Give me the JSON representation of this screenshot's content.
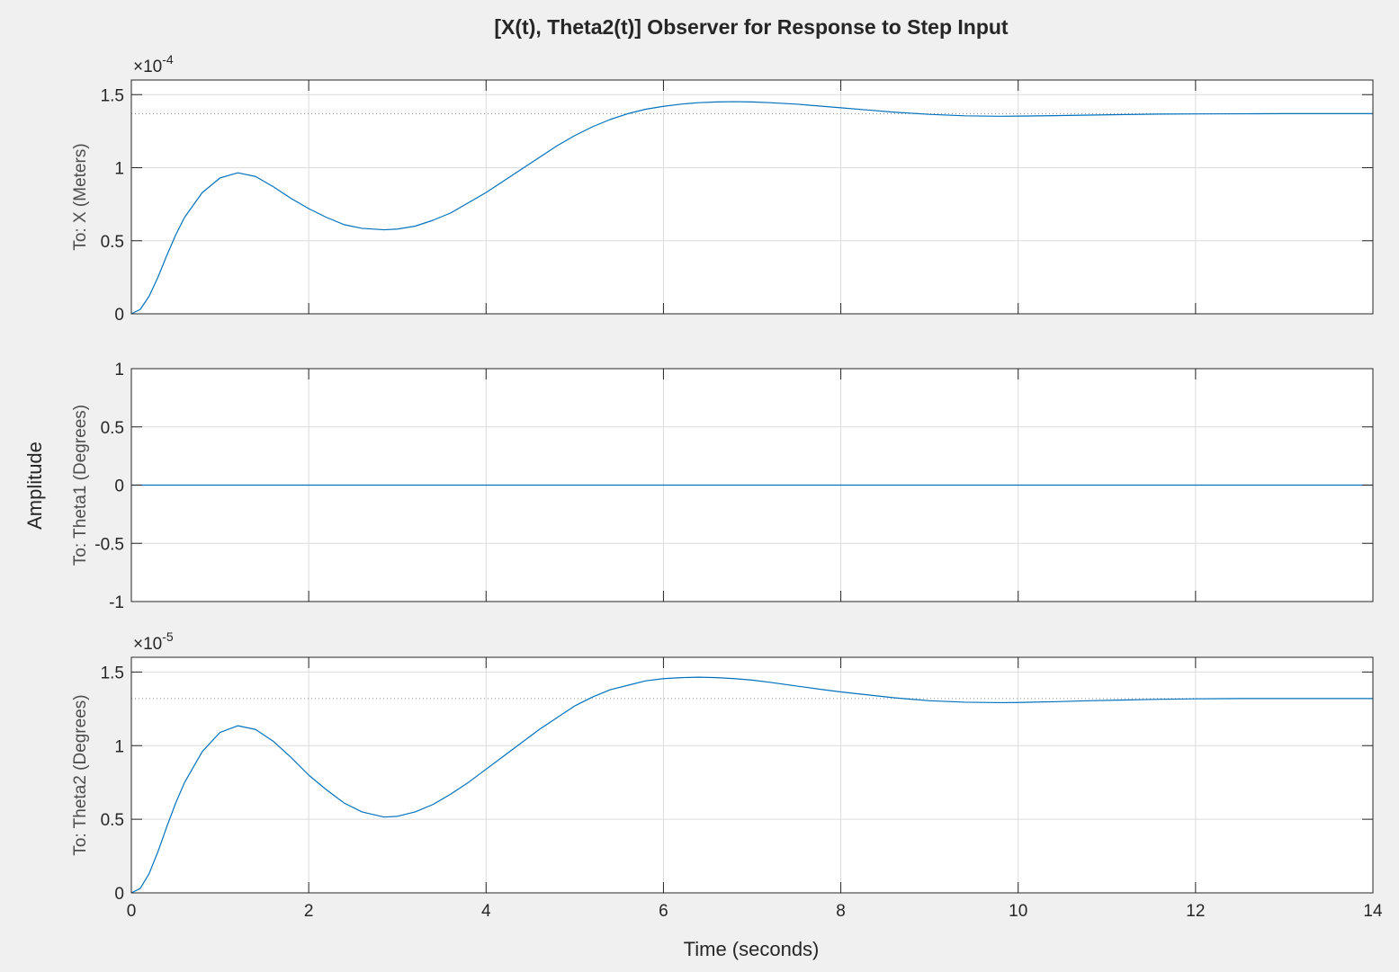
{
  "window": {
    "background": "#f0f0f0",
    "plot_background": "#ffffff",
    "grid_color": "#dcdcdc",
    "line_color": "#0072bd"
  },
  "chart_data": {
    "type": "line",
    "title": "[X(t), Theta2(t)] Observer for Response to Step Input",
    "xlabel": "Time (seconds)",
    "ylabel": "Amplitude",
    "xlim": [
      0,
      14
    ],
    "xticks": [
      0,
      2,
      4,
      6,
      8,
      10,
      12,
      14
    ],
    "grid": true,
    "subplots": [
      {
        "ylabel": "To: X (Meters)",
        "exponent_base": "×10",
        "exponent_power": "-4",
        "ylim": [
          0,
          1.6
        ],
        "yticks": [
          0,
          0.5,
          1,
          1.5
        ],
        "ytick_labels": [
          "0",
          "0.5",
          "1",
          "1.5"
        ],
        "steady_state": 1.37,
        "series": [
          {
            "t": [
              0,
              0.1,
              0.2,
              0.3,
              0.4,
              0.5,
              0.6,
              0.8,
              1.0,
              1.2,
              1.4,
              1.6,
              1.8,
              2.0,
              2.2,
              2.4,
              2.6,
              2.85,
              3.0,
              3.2,
              3.4,
              3.6,
              3.8,
              4.0,
              4.2,
              4.4,
              4.6,
              4.8,
              5.0,
              5.2,
              5.4,
              5.6,
              5.8,
              6.0,
              6.2,
              6.4,
              6.6,
              6.8,
              7.0,
              7.2,
              7.5,
              7.8,
              8.0,
              8.3,
              8.6,
              9.0,
              9.4,
              9.8,
              10.0,
              10.4,
              10.8,
              11.2,
              11.6,
              12.0,
              12.5,
              13.0,
              13.5,
              14.0
            ],
            "y": [
              0,
              0.03,
              0.12,
              0.25,
              0.4,
              0.54,
              0.66,
              0.83,
              0.93,
              0.965,
              0.94,
              0.87,
              0.79,
              0.72,
              0.66,
              0.61,
              0.585,
              0.575,
              0.58,
              0.6,
              0.64,
              0.69,
              0.76,
              0.83,
              0.91,
              0.99,
              1.07,
              1.15,
              1.22,
              1.28,
              1.33,
              1.37,
              1.4,
              1.42,
              1.435,
              1.445,
              1.45,
              1.452,
              1.45,
              1.445,
              1.435,
              1.42,
              1.41,
              1.395,
              1.38,
              1.365,
              1.355,
              1.352,
              1.353,
              1.356,
              1.36,
              1.364,
              1.367,
              1.368,
              1.369,
              1.37,
              1.37,
              1.37
            ]
          }
        ]
      },
      {
        "ylabel": "To: Theta1 (Degrees)",
        "ylim": [
          -1,
          1
        ],
        "yticks": [
          -1,
          -0.5,
          0,
          0.5,
          1
        ],
        "ytick_labels": [
          "-1",
          "-0.5",
          "0",
          "0.5",
          "1"
        ],
        "series": [
          {
            "t": [
              0,
              14
            ],
            "y": [
              0,
              0
            ]
          }
        ]
      },
      {
        "ylabel": "To: Theta2 (Degrees)",
        "exponent_base": "×10",
        "exponent_power": "-5",
        "ylim": [
          0,
          1.6
        ],
        "yticks": [
          0,
          0.5,
          1,
          1.5
        ],
        "ytick_labels": [
          "0",
          "0.5",
          "1",
          "1.5"
        ],
        "steady_state": 1.32,
        "series": [
          {
            "t": [
              0,
              0.1,
              0.2,
              0.3,
              0.4,
              0.5,
              0.6,
              0.8,
              1.0,
              1.2,
              1.4,
              1.6,
              1.8,
              2.0,
              2.2,
              2.4,
              2.6,
              2.85,
              3.0,
              3.2,
              3.4,
              3.6,
              3.8,
              4.0,
              4.2,
              4.4,
              4.6,
              4.8,
              5.0,
              5.2,
              5.4,
              5.6,
              5.8,
              6.0,
              6.2,
              6.4,
              6.6,
              6.8,
              7.0,
              7.2,
              7.5,
              7.8,
              8.0,
              8.3,
              8.6,
              9.0,
              9.4,
              9.8,
              10.0,
              10.4,
              10.8,
              11.2,
              11.6,
              12.0,
              12.5,
              13.0,
              13.5,
              14.0
            ],
            "y": [
              0,
              0.03,
              0.13,
              0.28,
              0.45,
              0.61,
              0.75,
              0.96,
              1.09,
              1.135,
              1.11,
              1.03,
              0.92,
              0.8,
              0.7,
              0.61,
              0.55,
              0.515,
              0.52,
              0.55,
              0.6,
              0.67,
              0.75,
              0.84,
              0.93,
              1.02,
              1.11,
              1.19,
              1.27,
              1.33,
              1.38,
              1.41,
              1.44,
              1.455,
              1.462,
              1.465,
              1.462,
              1.455,
              1.445,
              1.43,
              1.405,
              1.38,
              1.365,
              1.345,
              1.325,
              1.305,
              1.295,
              1.292,
              1.293,
              1.298,
              1.305,
              1.31,
              1.315,
              1.318,
              1.32,
              1.32,
              1.32,
              1.32
            ]
          }
        ]
      }
    ]
  }
}
